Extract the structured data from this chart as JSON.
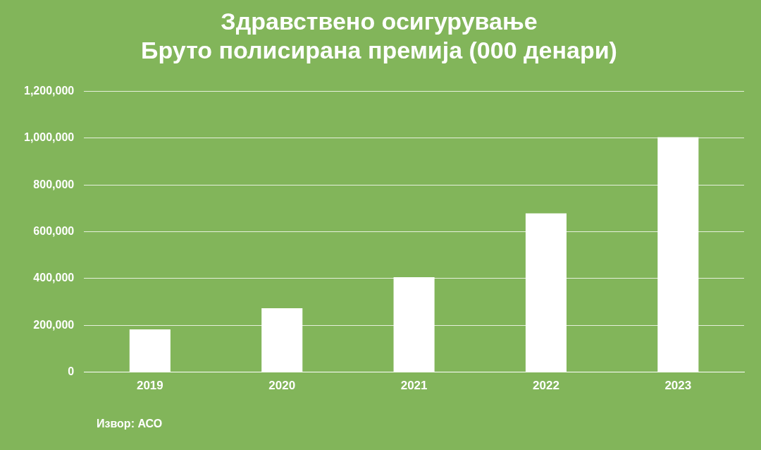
{
  "chart_data": {
    "type": "bar",
    "title": "Здравствено осигурување\nБруто полисирана премија (000 денари)",
    "categories": [
      "2019",
      "2020",
      "2021",
      "2022",
      "2023"
    ],
    "values": [
      183000,
      273000,
      406000,
      679000,
      1004000
    ],
    "color": "#ffffff",
    "ylim": [
      0,
      1200000
    ],
    "yticks": [
      0,
      {
        "value": 200000,
        "label": "200,000"
      },
      {
        "value": 400000,
        "label": "400,000"
      },
      {
        "value": 600000,
        "label": "600,000"
      },
      {
        "value": 800000,
        "label": "800,000"
      },
      {
        "value": 1000000,
        "label": "1,000,000"
      },
      {
        "value": 1200000,
        "label": "1,200,000"
      }
    ],
    "grid": "y",
    "legend": false,
    "annotations": [
      "Извор: АСО"
    ]
  }
}
